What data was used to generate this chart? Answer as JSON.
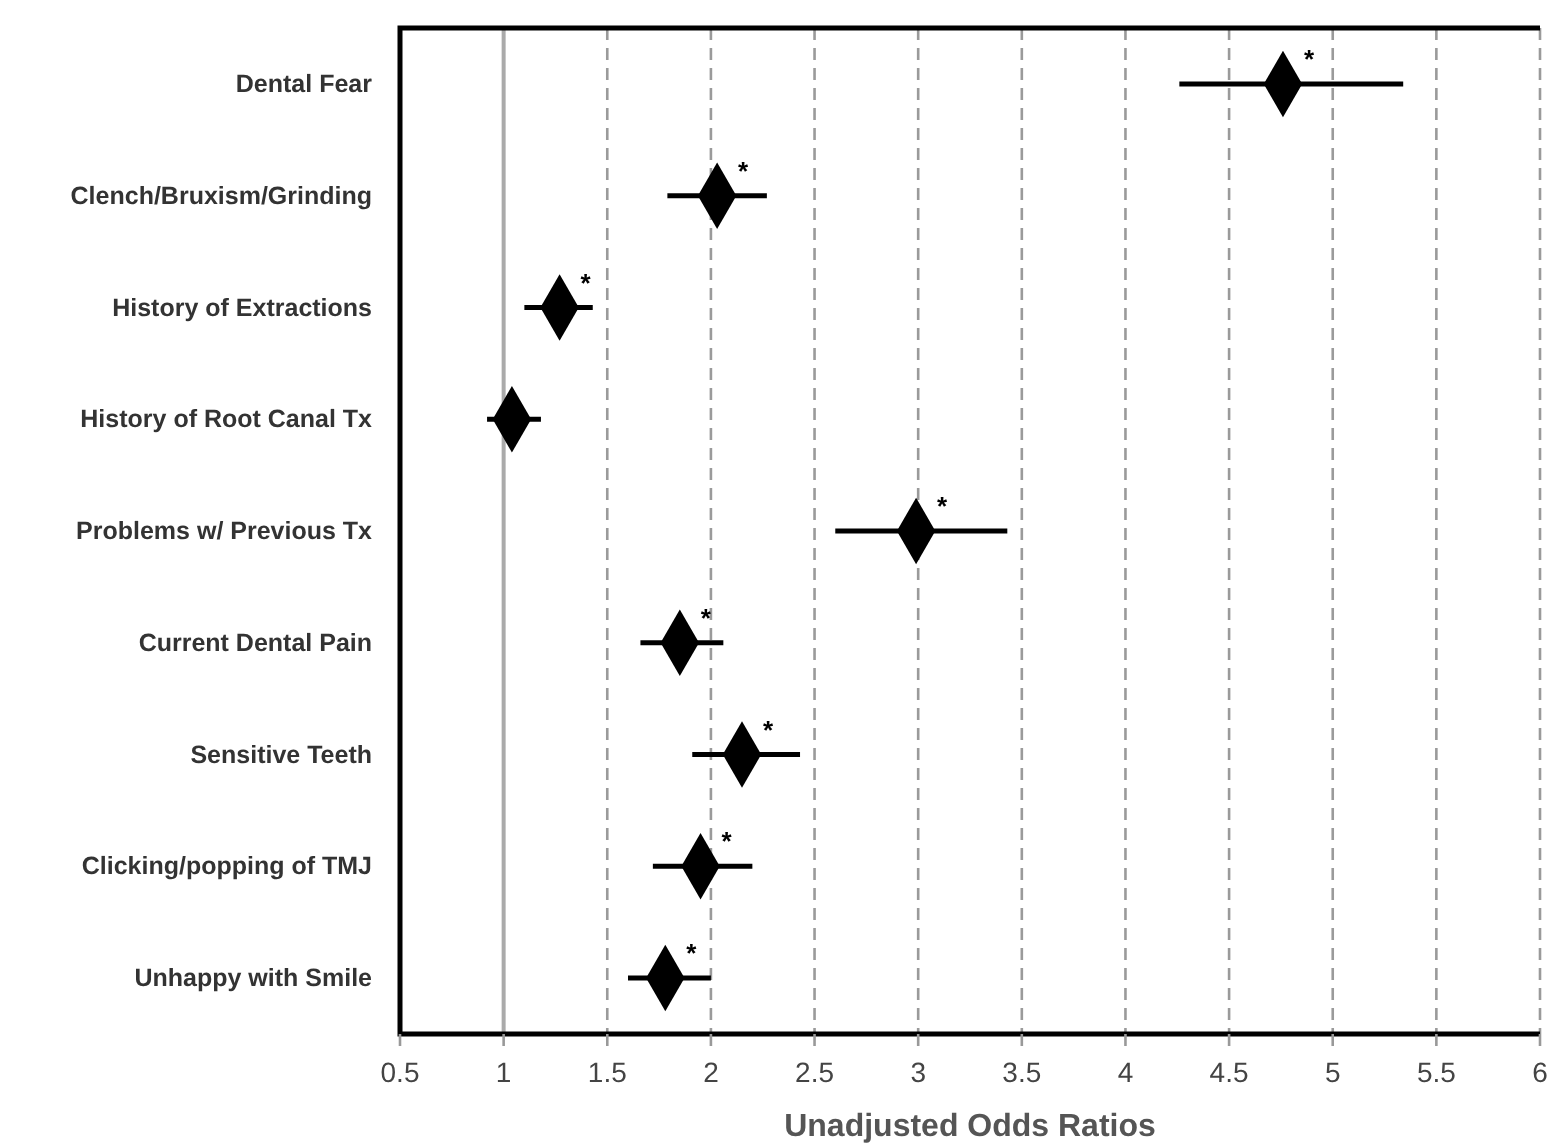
{
  "chart_data": {
    "type": "scatter",
    "orientation": "horizontal",
    "xlabel": "Unadjusted Odds Ratios",
    "categories": [
      "Dental Fear",
      "Clench/Bruxism/Grinding",
      "History of Extractions",
      "History of Root Canal Tx",
      "Problems w/ Previous Tx",
      "Current Dental Pain",
      "Sensitive Teeth",
      "Clicking/popping of TMJ",
      "Unhappy with Smile"
    ],
    "values": [
      4.76,
      2.03,
      1.27,
      1.04,
      2.99,
      1.85,
      2.15,
      1.95,
      1.78
    ],
    "errors": [
      [
        4.26,
        5.34
      ],
      [
        1.79,
        2.27
      ],
      [
        1.1,
        1.43
      ],
      [
        0.92,
        1.18
      ],
      [
        2.6,
        3.43
      ],
      [
        1.66,
        2.06
      ],
      [
        1.91,
        2.43
      ],
      [
        1.72,
        2.2
      ],
      [
        1.6,
        2.0
      ]
    ],
    "value_labels": [
      "*",
      "*",
      "*",
      null,
      "*",
      "*",
      "*",
      "*",
      "*"
    ],
    "color": "#000000",
    "marker": "diamond",
    "xlim": [
      0.5,
      6
    ],
    "xticks": [
      0.5,
      1,
      1.5,
      2,
      2.5,
      3,
      3.5,
      4,
      4.5,
      5,
      5.5,
      6
    ],
    "grid": "x",
    "ref_lines": [
      {
        "axis": "x",
        "value": 1,
        "color": "#aaaaaa",
        "line_style": "solid"
      }
    ]
  }
}
